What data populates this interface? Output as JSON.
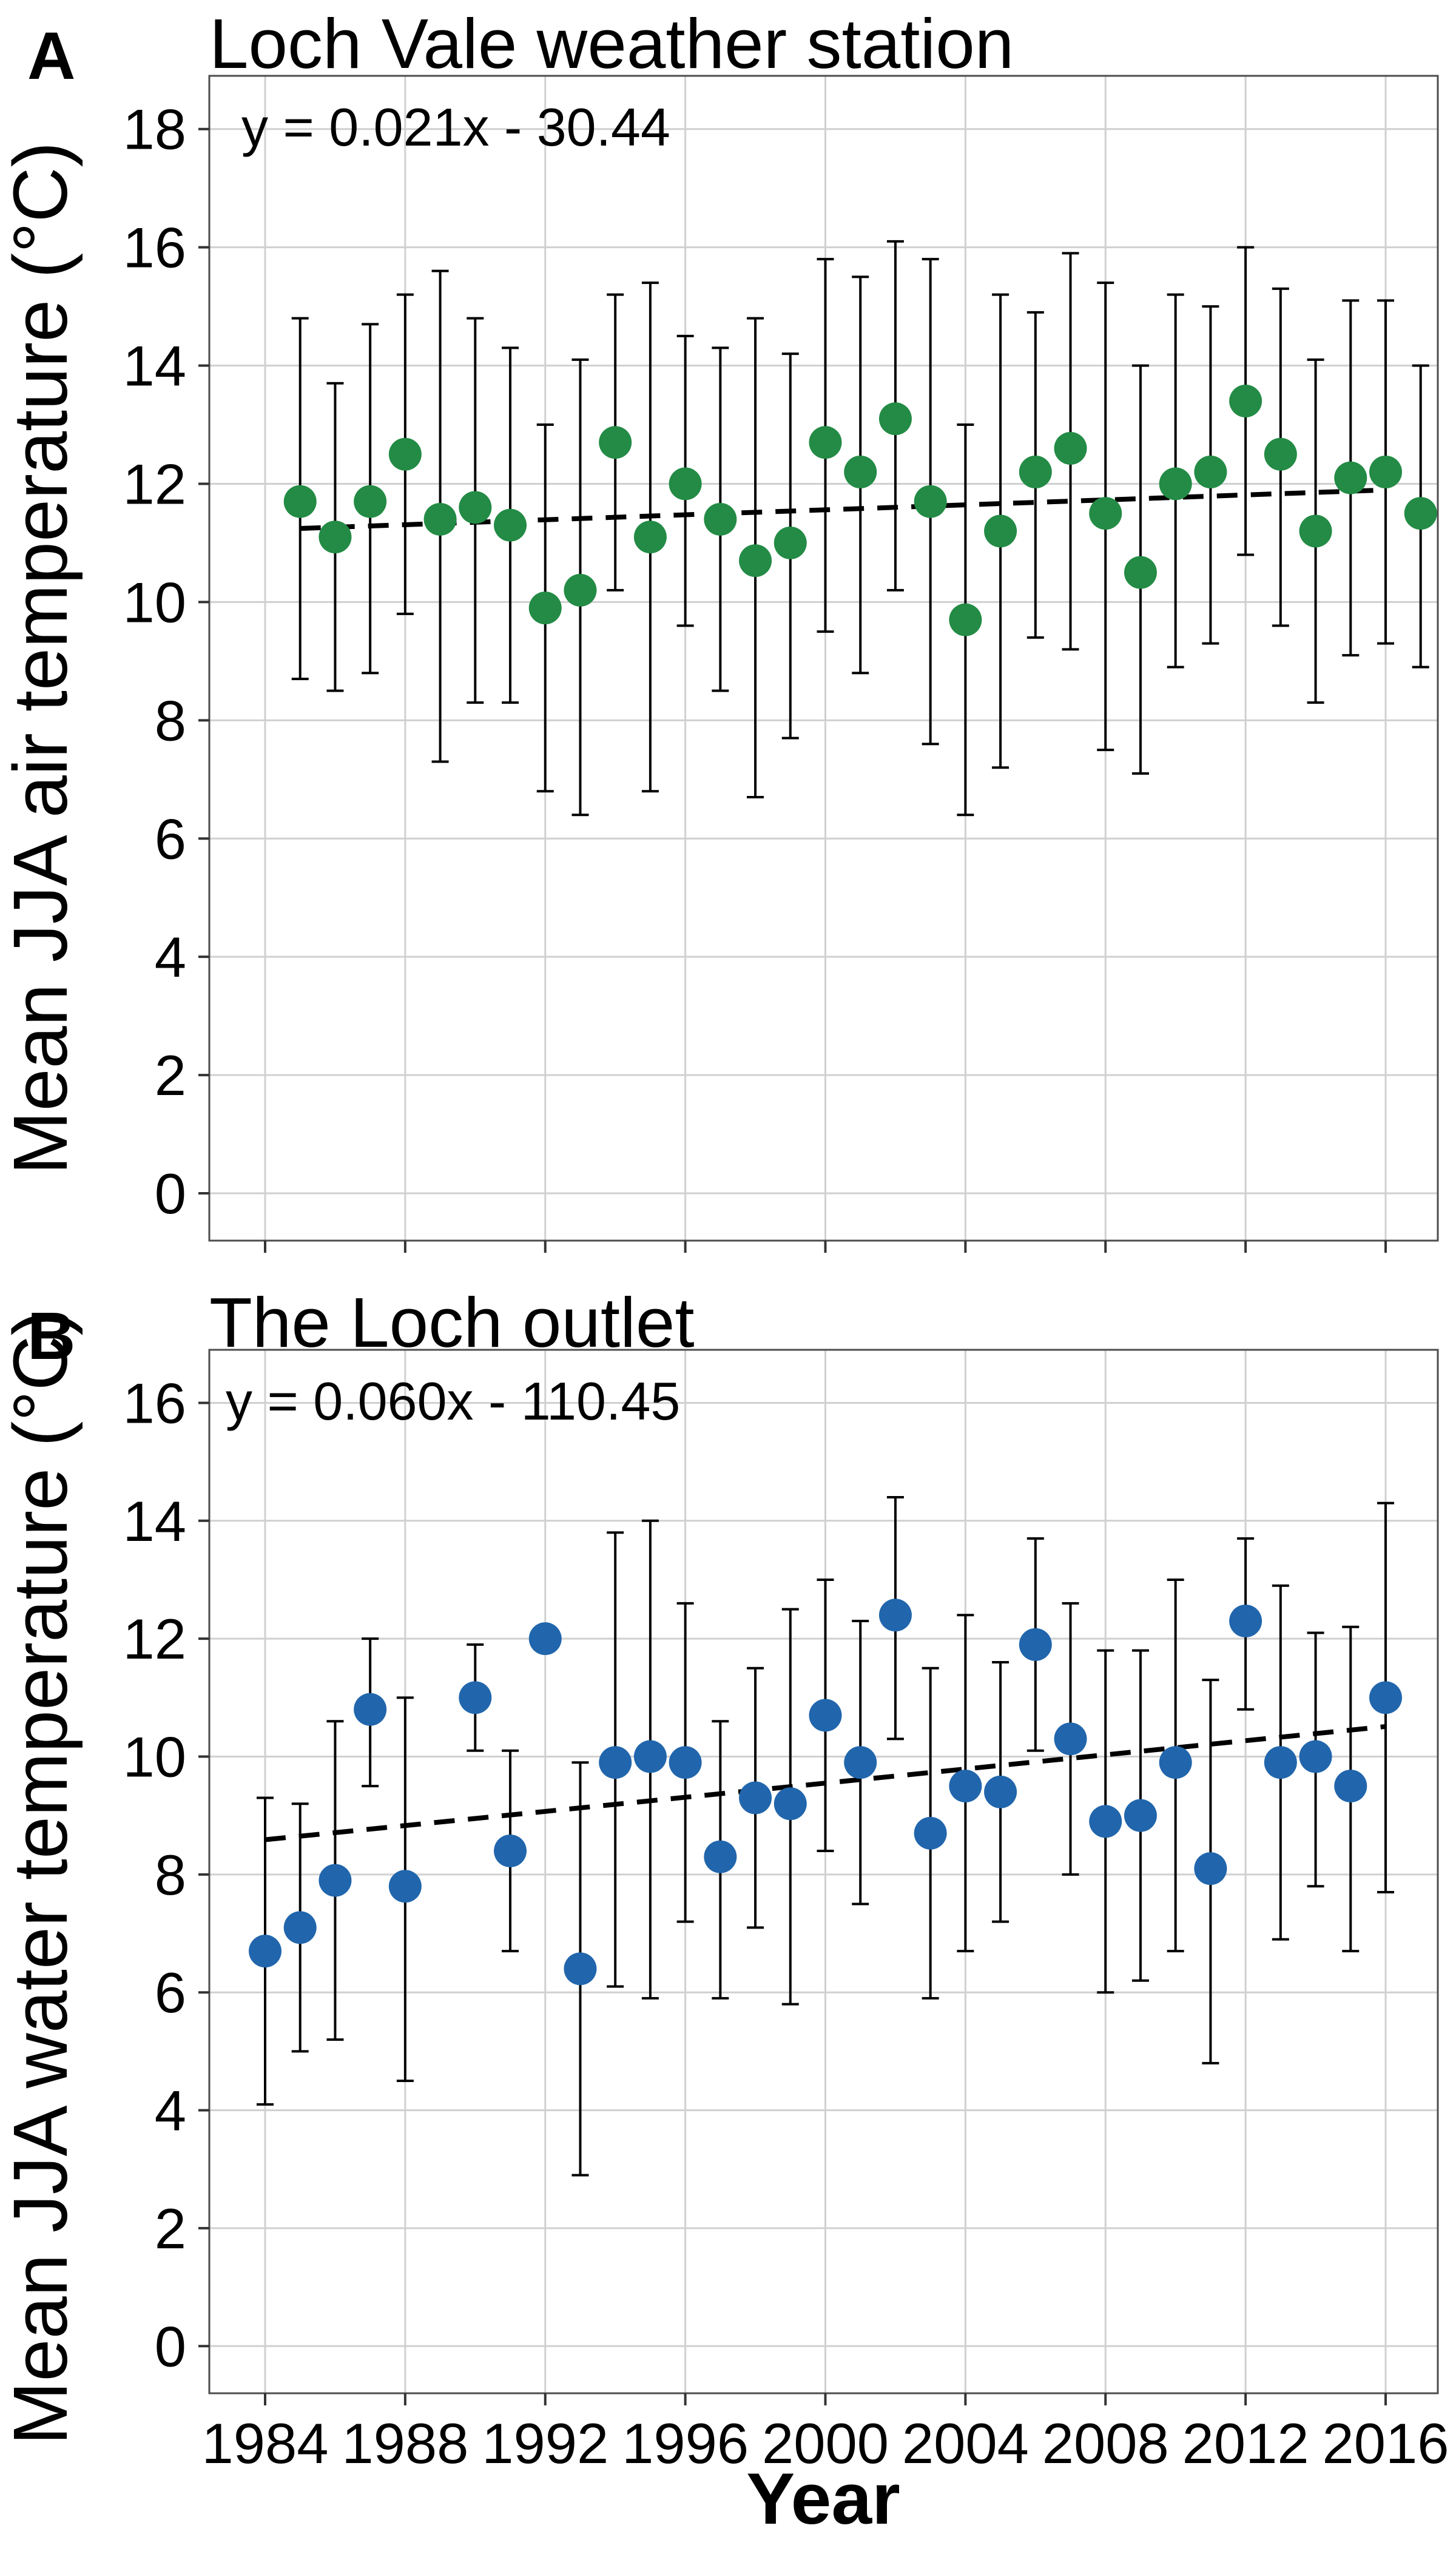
{
  "figure_xlabel": "Year",
  "colors": {
    "panel_a_points": "#238b45",
    "panel_b_points": "#2166ac",
    "errorbars": "#000000",
    "trend": "#000000",
    "grid": "#d0d0d0"
  },
  "chart_data": [
    {
      "panel": "A",
      "type": "scatter",
      "title": "Loch Vale weather station",
      "equation": "y = 0.021x - 30.44",
      "ylabel": "Mean JJA air temperature (°C)",
      "xlabel": "",
      "xlim": [
        1984,
        2016
      ],
      "ylim": [
        -0.8,
        18.9
      ],
      "yticks": [
        0,
        2,
        4,
        6,
        8,
        10,
        12,
        14,
        16,
        18
      ],
      "xticks": [
        1984,
        1988,
        1992,
        1996,
        2000,
        2004,
        2008,
        2012,
        2016
      ],
      "grid": true,
      "point_color": "#238b45",
      "trend": {
        "slope": 0.021,
        "intercept": -30.44,
        "x_range": [
          1985,
          2016
        ]
      },
      "points": [
        {
          "x": 1985,
          "y": 11.7,
          "lo": 8.7,
          "hi": 14.8
        },
        {
          "x": 1986,
          "y": 11.1,
          "lo": 8.5,
          "hi": 13.7
        },
        {
          "x": 1987,
          "y": 11.7,
          "lo": 8.8,
          "hi": 14.7
        },
        {
          "x": 1988,
          "y": 12.5,
          "lo": 9.8,
          "hi": 15.2
        },
        {
          "x": 1989,
          "y": 11.4,
          "lo": 7.3,
          "hi": 15.6
        },
        {
          "x": 1990,
          "y": 11.6,
          "lo": 8.3,
          "hi": 14.8
        },
        {
          "x": 1991,
          "y": 11.3,
          "lo": 8.3,
          "hi": 14.3
        },
        {
          "x": 1992,
          "y": 9.9,
          "lo": 6.8,
          "hi": 13.0
        },
        {
          "x": 1993,
          "y": 10.2,
          "lo": 6.4,
          "hi": 14.1
        },
        {
          "x": 1994,
          "y": 12.7,
          "lo": 10.2,
          "hi": 15.2
        },
        {
          "x": 1995,
          "y": 11.1,
          "lo": 6.8,
          "hi": 15.4
        },
        {
          "x": 1996,
          "y": 12.0,
          "lo": 9.6,
          "hi": 14.5
        },
        {
          "x": 1997,
          "y": 11.4,
          "lo": 8.5,
          "hi": 14.3
        },
        {
          "x": 1998,
          "y": 10.7,
          "lo": 6.7,
          "hi": 14.8
        },
        {
          "x": 1999,
          "y": 11.0,
          "lo": 7.7,
          "hi": 14.2
        },
        {
          "x": 2000,
          "y": 12.7,
          "lo": 9.5,
          "hi": 15.8
        },
        {
          "x": 2001,
          "y": 12.2,
          "lo": 8.8,
          "hi": 15.5
        },
        {
          "x": 2002,
          "y": 13.1,
          "lo": 10.2,
          "hi": 16.1
        },
        {
          "x": 2003,
          "y": 11.7,
          "lo": 7.6,
          "hi": 15.8
        },
        {
          "x": 2004,
          "y": 9.7,
          "lo": 6.4,
          "hi": 13.0
        },
        {
          "x": 2005,
          "y": 11.2,
          "lo": 7.2,
          "hi": 15.2
        },
        {
          "x": 2006,
          "y": 12.2,
          "lo": 9.4,
          "hi": 14.9
        },
        {
          "x": 2007,
          "y": 12.6,
          "lo": 9.2,
          "hi": 15.9
        },
        {
          "x": 2008,
          "y": 11.5,
          "lo": 7.5,
          "hi": 15.4
        },
        {
          "x": 2009,
          "y": 10.5,
          "lo": 7.1,
          "hi": 14.0
        },
        {
          "x": 2010,
          "y": 12.0,
          "lo": 8.9,
          "hi": 15.2
        },
        {
          "x": 2011,
          "y": 12.2,
          "lo": 9.3,
          "hi": 15.0
        },
        {
          "x": 2012,
          "y": 13.4,
          "lo": 10.8,
          "hi": 16.0
        },
        {
          "x": 2013,
          "y": 12.5,
          "lo": 9.6,
          "hi": 15.3
        },
        {
          "x": 2014,
          "y": 11.2,
          "lo": 8.3,
          "hi": 14.1
        },
        {
          "x": 2015,
          "y": 12.1,
          "lo": 9.1,
          "hi": 15.1
        },
        {
          "x": 2016,
          "y": 12.2,
          "lo": 9.3,
          "hi": 15.1
        },
        {
          "x": 2017,
          "y": 11.5,
          "lo": 8.9,
          "hi": 14.0
        }
      ]
    },
    {
      "panel": "B",
      "type": "scatter",
      "title": "The Loch outlet",
      "equation": "y = 0.060x - 110.45",
      "ylabel": "Mean JJA water temperature (°C)",
      "xlabel": "Year",
      "xlim": [
        1984,
        2016
      ],
      "ylim": [
        -0.8,
        16.9
      ],
      "yticks": [
        0,
        2,
        4,
        6,
        8,
        10,
        12,
        14,
        16
      ],
      "xticks": [
        1984,
        1988,
        1992,
        1996,
        2000,
        2004,
        2008,
        2012,
        2016
      ],
      "grid": true,
      "point_color": "#2166ac",
      "trend": {
        "slope": 0.06,
        "intercept": -110.45,
        "x_range": [
          1984,
          2016
        ]
      },
      "points": [
        {
          "x": 1984,
          "y": 6.7,
          "lo": 4.1,
          "hi": 9.3
        },
        {
          "x": 1985,
          "y": 7.1,
          "lo": 5.0,
          "hi": 9.2
        },
        {
          "x": 1986,
          "y": 7.9,
          "lo": 5.2,
          "hi": 10.6
        },
        {
          "x": 1987,
          "y": 10.8,
          "lo": 9.5,
          "hi": 12.0
        },
        {
          "x": 1988,
          "y": 7.8,
          "lo": 4.5,
          "hi": 11.0
        },
        {
          "x": 1990,
          "y": 11.0,
          "lo": 10.1,
          "hi": 11.9
        },
        {
          "x": 1991,
          "y": 8.4,
          "lo": 6.7,
          "hi": 10.1
        },
        {
          "x": 1992,
          "y": 12.0,
          "lo": 12.0,
          "hi": 12.0
        },
        {
          "x": 1993,
          "y": 6.4,
          "lo": 2.9,
          "hi": 9.9
        },
        {
          "x": 1994,
          "y": 9.9,
          "lo": 6.1,
          "hi": 13.8
        },
        {
          "x": 1995,
          "y": 10.0,
          "lo": 5.9,
          "hi": 14.0
        },
        {
          "x": 1996,
          "y": 9.9,
          "lo": 7.2,
          "hi": 12.6
        },
        {
          "x": 1997,
          "y": 8.3,
          "lo": 5.9,
          "hi": 10.6
        },
        {
          "x": 1998,
          "y": 9.3,
          "lo": 7.1,
          "hi": 11.5
        },
        {
          "x": 1999,
          "y": 9.2,
          "lo": 5.8,
          "hi": 12.5
        },
        {
          "x": 2000,
          "y": 10.7,
          "lo": 8.4,
          "hi": 13.0
        },
        {
          "x": 2001,
          "y": 9.9,
          "lo": 7.5,
          "hi": 12.3
        },
        {
          "x": 2002,
          "y": 12.4,
          "lo": 10.3,
          "hi": 14.4
        },
        {
          "x": 2003,
          "y": 8.7,
          "lo": 5.9,
          "hi": 11.5
        },
        {
          "x": 2004,
          "y": 9.5,
          "lo": 6.7,
          "hi": 12.4
        },
        {
          "x": 2005,
          "y": 9.4,
          "lo": 7.2,
          "hi": 11.6
        },
        {
          "x": 2006,
          "y": 11.9,
          "lo": 10.1,
          "hi": 13.7
        },
        {
          "x": 2007,
          "y": 10.3,
          "lo": 8.0,
          "hi": 12.6
        },
        {
          "x": 2008,
          "y": 8.9,
          "lo": 6.0,
          "hi": 11.8
        },
        {
          "x": 2009,
          "y": 9.0,
          "lo": 6.2,
          "hi": 11.8
        },
        {
          "x": 2010,
          "y": 9.9,
          "lo": 6.7,
          "hi": 13.0
        },
        {
          "x": 2011,
          "y": 8.1,
          "lo": 4.8,
          "hi": 11.3
        },
        {
          "x": 2012,
          "y": 12.3,
          "lo": 10.8,
          "hi": 13.7
        },
        {
          "x": 2013,
          "y": 9.9,
          "lo": 6.9,
          "hi": 12.9
        },
        {
          "x": 2014,
          "y": 10.0,
          "lo": 7.8,
          "hi": 12.1
        },
        {
          "x": 2015,
          "y": 9.5,
          "lo": 6.7,
          "hi": 12.2
        },
        {
          "x": 2016,
          "y": 11.0,
          "lo": 7.7,
          "hi": 14.3
        }
      ]
    }
  ]
}
